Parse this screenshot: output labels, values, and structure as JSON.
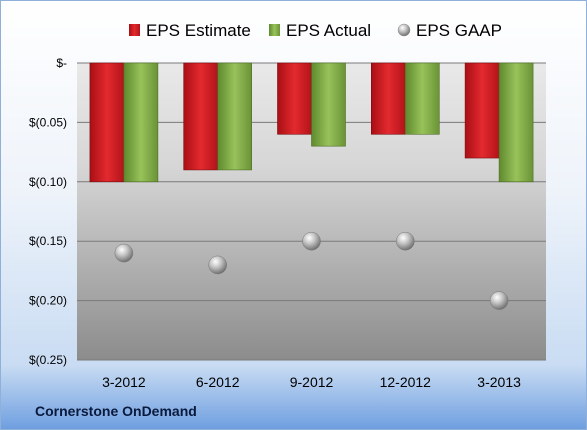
{
  "company": "Cornerstone OnDemand",
  "colors": {
    "estimate": "#d21c22",
    "actual": "#7faa45",
    "gaap": "#a9a9a9"
  },
  "chart_data": {
    "type": "bar",
    "categories": [
      "3-2012",
      "6-2012",
      "9-2012",
      "12-2012",
      "3-2013"
    ],
    "series": [
      {
        "name": "EPS Estimate",
        "type": "bar",
        "values": [
          -0.1,
          -0.09,
          -0.06,
          -0.06,
          -0.08
        ]
      },
      {
        "name": "EPS Actual",
        "type": "bar",
        "values": [
          -0.1,
          -0.09,
          -0.07,
          -0.06,
          -0.1
        ]
      },
      {
        "name": "EPS GAAP",
        "type": "scatter",
        "values": [
          -0.16,
          -0.17,
          -0.15,
          -0.15,
          -0.2
        ]
      }
    ],
    "ylim": [
      -0.25,
      0
    ],
    "yticks": [
      0,
      -0.05,
      -0.1,
      -0.15,
      -0.2,
      -0.25
    ],
    "ytick_labels": [
      "$-",
      "$(0.05)",
      "$(0.10)",
      "$(0.15)",
      "$(0.20)",
      "$(0.25)"
    ],
    "legend_position": "top",
    "grid": true
  }
}
